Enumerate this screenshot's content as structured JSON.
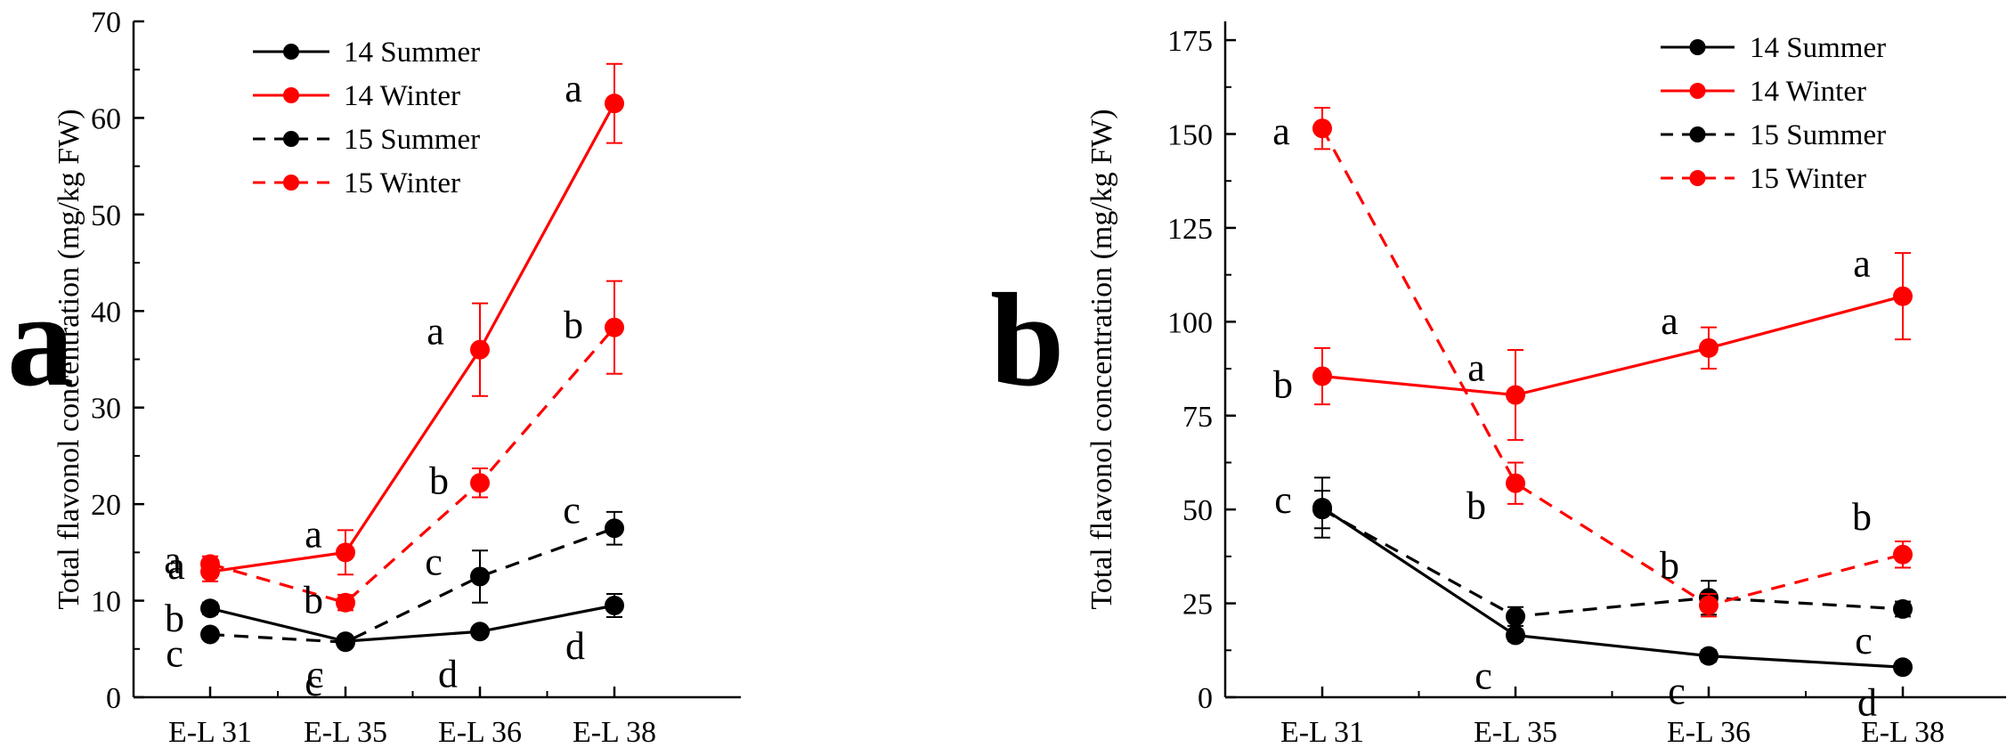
{
  "chart_data": [
    {
      "type": "line",
      "panel_label": "a",
      "ylabel": "Total flavonol concentration (mg/kg FW)",
      "xlabel": "",
      "categories": [
        "E-L 31",
        "E-L 35",
        "E-L 36",
        "E-L 38"
      ],
      "ylim": [
        0,
        70
      ],
      "yticks": [
        0,
        10,
        20,
        30,
        40,
        50,
        60,
        70
      ],
      "legend_position": "top-left",
      "series": [
        {
          "name": "14 Summer",
          "color": "#000000",
          "dashed": false,
          "values": [
            9.2,
            5.8,
            6.8,
            9.5
          ],
          "errors": [
            0.6,
            0.5,
            0.5,
            1.2
          ],
          "letters": [
            "b",
            "c",
            "d",
            "d"
          ]
        },
        {
          "name": "14 Winter",
          "color": "#ff0000",
          "dashed": false,
          "values": [
            13.0,
            15.0,
            36.0,
            61.5
          ],
          "errors": [
            1.0,
            2.3,
            4.8,
            4.1
          ],
          "letters": [
            "a",
            "a",
            "a",
            "a"
          ]
        },
        {
          "name": "15 Summer",
          "color": "#000000",
          "dashed": true,
          "values": [
            6.5,
            5.7,
            12.5,
            17.5
          ],
          "errors": [
            0.5,
            0.5,
            2.7,
            1.7
          ],
          "letters": [
            "c",
            "c",
            "c",
            "c"
          ]
        },
        {
          "name": "15 Winter",
          "color": "#ff0000",
          "dashed": true,
          "values": [
            13.8,
            9.8,
            22.2,
            38.3
          ],
          "errors": [
            0.8,
            0.8,
            1.5,
            4.8
          ],
          "letters": [
            "a",
            "b",
            "b",
            "b"
          ]
        }
      ]
    },
    {
      "type": "line",
      "panel_label": "b",
      "ylabel": "Total flavonol concentration (mg/kg FW)",
      "xlabel": "",
      "categories": [
        "E-L 31",
        "E-L 35",
        "E-L 36",
        "E-L 38"
      ],
      "ylim": [
        0,
        180
      ],
      "yticks": [
        0,
        25,
        50,
        75,
        100,
        125,
        150,
        175
      ],
      "legend_position": "top-right",
      "series": [
        {
          "name": "14 Summer",
          "color": "#000000",
          "dashed": false,
          "values": [
            50.5,
            16.5,
            11.0,
            8.0
          ],
          "errors": [
            8.0,
            1.5,
            1.5,
            1.0
          ],
          "letters": [
            "c",
            "c",
            "c",
            "d"
          ]
        },
        {
          "name": "14 Winter",
          "color": "#ff0000",
          "dashed": false,
          "values": [
            85.5,
            80.5,
            93.0,
            106.8
          ],
          "errors": [
            7.5,
            12.0,
            5.5,
            11.5
          ],
          "letters": [
            "b",
            "a",
            "a",
            "a"
          ]
        },
        {
          "name": "15 Summer",
          "color": "#000000",
          "dashed": true,
          "values": [
            50.0,
            21.5,
            26.5,
            23.5
          ],
          "errors": [
            5.0,
            2.5,
            4.5,
            2.0
          ],
          "letters": [
            "",
            "",
            "",
            "c"
          ]
        },
        {
          "name": "15 Winter",
          "color": "#ff0000",
          "dashed": true,
          "values": [
            151.5,
            57.0,
            24.5,
            38.0
          ],
          "errors": [
            5.5,
            5.5,
            3.0,
            3.5
          ],
          "letters": [
            "a",
            "b",
            "b",
            "b"
          ]
        }
      ]
    }
  ]
}
